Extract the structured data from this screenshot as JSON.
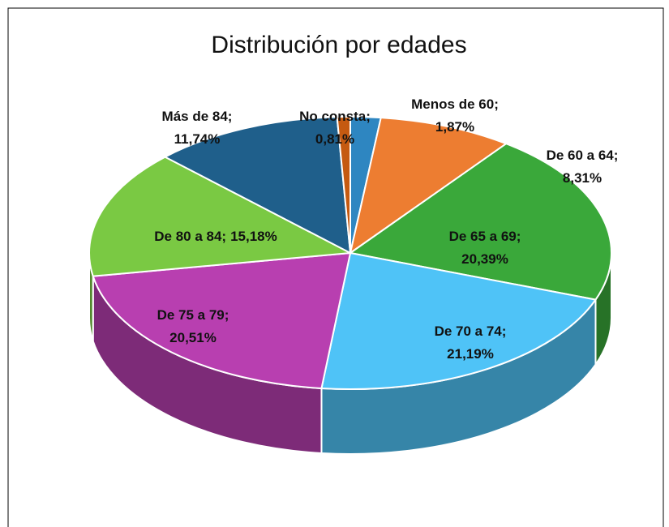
{
  "chart_data": {
    "type": "pie3d",
    "title": "Distribución por edades",
    "categories": [
      "Menos de 60",
      "De 60 a 64",
      "De 65 a 69",
      "De 70 a 74",
      "De 75 a 79",
      "De 80 a 84",
      "Más de 84",
      "No consta"
    ],
    "values": [
      1.87,
      8.31,
      20.39,
      21.19,
      20.51,
      15.18,
      11.74,
      0.81
    ],
    "value_labels": [
      "1,87%",
      "8,31%",
      "20,39%",
      "21,19%",
      "20,51%",
      "15,18%",
      "11,74%",
      "0,81%"
    ],
    "label_separator": ";",
    "colors": [
      "#2e86c1",
      "#ed7d31",
      "#3aa83a",
      "#4fc3f7",
      "#b83fb0",
      "#7ac943",
      "#1f5f8b",
      "#c55a11"
    ]
  }
}
